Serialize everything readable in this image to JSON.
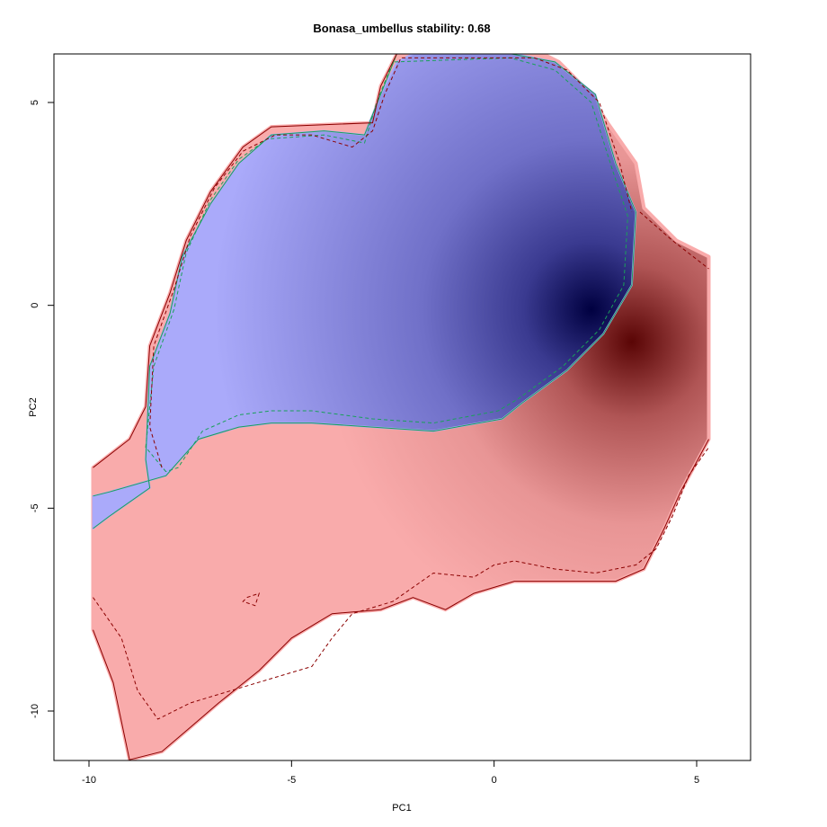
{
  "chart_data": {
    "type": "heatmap",
    "title": "Bonasa_umbellus stability: 0.68",
    "xlabel": "PC1",
    "ylabel": "PC2",
    "xlim": [
      -10,
      5
    ],
    "ylim": [
      -10,
      5
    ],
    "x_ticks": [
      -10,
      -5,
      0,
      5
    ],
    "y_ticks": [
      -10,
      -5,
      0,
      5
    ],
    "x_tick_labels": [
      "-10",
      "-5",
      "0",
      "5"
    ],
    "y_tick_labels": [
      "-10",
      "-5",
      "0",
      "5"
    ],
    "stability": 0.68,
    "colors": {
      "blue_region": "#aaaafa",
      "red_region": "#f9abab",
      "blue_core": "#000040",
      "red_core": "#5a0505",
      "blue_contour": "#1aa05a",
      "red_contour": "#8b0000",
      "background": "#ffffff"
    },
    "regions": [
      {
        "name": "blue",
        "density_peak": [
          2.4,
          -0.1
        ],
        "outline": [
          [
            -9.9,
            -5.5
          ],
          [
            -9.5,
            -5.2
          ],
          [
            -8.5,
            -4.5
          ],
          [
            -8.6,
            -3.8
          ],
          [
            -8.5,
            -1.5
          ],
          [
            -8.0,
            -0.2
          ],
          [
            -7.7,
            1.2
          ],
          [
            -7.0,
            2.5
          ],
          [
            -6.3,
            3.5
          ],
          [
            -5.5,
            4.2
          ],
          [
            -4.2,
            4.3
          ],
          [
            -3.2,
            4.2
          ],
          [
            -2.8,
            5.2
          ],
          [
            -2.4,
            6.0
          ],
          [
            -2.0,
            6.2
          ],
          [
            0.5,
            6.2
          ],
          [
            1.5,
            6.0
          ],
          [
            2.5,
            5.2
          ],
          [
            3.0,
            3.5
          ],
          [
            3.5,
            2.3
          ],
          [
            3.4,
            0.5
          ],
          [
            2.7,
            -0.7
          ],
          [
            1.8,
            -1.6
          ],
          [
            0.7,
            -2.4
          ],
          [
            0.2,
            -2.8
          ],
          [
            -1.5,
            -3.1
          ],
          [
            -3.0,
            -3.0
          ],
          [
            -4.5,
            -2.9
          ],
          [
            -5.5,
            -2.9
          ],
          [
            -6.3,
            -3.0
          ],
          [
            -7.3,
            -3.3
          ],
          [
            -8.1,
            -4.2
          ],
          [
            -9.5,
            -4.6
          ],
          [
            -9.9,
            -4.7
          ]
        ]
      },
      {
        "name": "red",
        "density_peak": [
          3.4,
          -0.9
        ],
        "outline": [
          [
            -9.9,
            -4.0
          ],
          [
            -9.0,
            -3.3
          ],
          [
            -8.6,
            -2.5
          ],
          [
            -8.5,
            -1.0
          ],
          [
            -8.0,
            0.3
          ],
          [
            -7.6,
            1.6
          ],
          [
            -7.0,
            2.8
          ],
          [
            -6.2,
            3.9
          ],
          [
            -5.5,
            4.4
          ],
          [
            -3.0,
            4.5
          ],
          [
            -2.8,
            5.4
          ],
          [
            -2.4,
            6.2
          ],
          [
            1.2,
            6.2
          ],
          [
            1.6,
            6.0
          ],
          [
            2.3,
            5.3
          ],
          [
            2.8,
            4.5
          ],
          [
            3.5,
            3.5
          ],
          [
            3.7,
            2.4
          ],
          [
            4.5,
            1.6
          ],
          [
            5.3,
            1.2
          ],
          [
            5.3,
            -3.3
          ],
          [
            4.6,
            -4.6
          ],
          [
            4.2,
            -5.5
          ],
          [
            3.7,
            -6.5
          ],
          [
            3.0,
            -6.8
          ],
          [
            0.5,
            -6.8
          ],
          [
            -0.5,
            -7.1
          ],
          [
            -1.2,
            -7.5
          ],
          [
            -2.0,
            -7.2
          ],
          [
            -2.8,
            -7.5
          ],
          [
            -4.0,
            -7.6
          ],
          [
            -5.0,
            -8.2
          ],
          [
            -5.8,
            -9.0
          ],
          [
            -6.8,
            -9.8
          ],
          [
            -7.5,
            -10.4
          ],
          [
            -8.2,
            -11.0
          ],
          [
            -9.0,
            -11.2
          ],
          [
            -9.4,
            -9.3
          ],
          [
            -9.9,
            -8.0
          ]
        ]
      }
    ],
    "contours": [
      {
        "name": "blue-solid",
        "color": "#1aa05a",
        "dashed": false,
        "points": [
          [
            -9.9,
            -5.5
          ],
          [
            -9.5,
            -5.2
          ],
          [
            -8.5,
            -4.5
          ],
          [
            -8.6,
            -3.8
          ],
          [
            -8.5,
            -1.5
          ],
          [
            -8.0,
            -0.2
          ],
          [
            -7.7,
            1.2
          ],
          [
            -7.0,
            2.5
          ],
          [
            -6.3,
            3.5
          ],
          [
            -5.5,
            4.2
          ],
          [
            -4.2,
            4.3
          ],
          [
            -3.2,
            4.2
          ],
          [
            -2.8,
            5.2
          ],
          [
            -2.4,
            6.2
          ],
          [
            0.4,
            6.2
          ],
          [
            1.5,
            6.0
          ],
          [
            2.5,
            5.2
          ],
          [
            3.0,
            3.5
          ],
          [
            3.5,
            2.3
          ],
          [
            3.4,
            0.5
          ],
          [
            2.7,
            -0.7
          ],
          [
            1.8,
            -1.6
          ],
          [
            0.7,
            -2.4
          ],
          [
            0.2,
            -2.8
          ],
          [
            -1.5,
            -3.1
          ],
          [
            -3.0,
            -3.0
          ],
          [
            -4.5,
            -2.9
          ],
          [
            -5.5,
            -2.9
          ],
          [
            -6.3,
            -3.0
          ],
          [
            -7.3,
            -3.3
          ],
          [
            -8.1,
            -4.2
          ],
          [
            -9.5,
            -4.6
          ],
          [
            -9.9,
            -4.7
          ]
        ]
      },
      {
        "name": "blue-dashed",
        "color": "#1aa05a",
        "dashed": true,
        "points": [
          [
            -8.1,
            -4.1
          ],
          [
            -8.6,
            -3.5
          ],
          [
            -8.4,
            -1.5
          ],
          [
            -7.9,
            -0.1
          ],
          [
            -7.6,
            1.3
          ],
          [
            -7.0,
            2.6
          ],
          [
            -6.3,
            3.6
          ],
          [
            -5.6,
            4.1
          ],
          [
            -4.2,
            4.2
          ],
          [
            -3.2,
            4.0
          ],
          [
            -2.9,
            5.0
          ],
          [
            -2.5,
            6.0
          ],
          [
            0.4,
            6.1
          ],
          [
            1.5,
            5.8
          ],
          [
            2.4,
            5.0
          ],
          [
            2.9,
            3.4
          ],
          [
            3.3,
            2.2
          ],
          [
            3.2,
            0.5
          ],
          [
            2.6,
            -0.6
          ],
          [
            1.7,
            -1.5
          ],
          [
            0.6,
            -2.3
          ],
          [
            0.1,
            -2.6
          ],
          [
            -1.5,
            -2.9
          ],
          [
            -3.0,
            -2.8
          ],
          [
            -4.5,
            -2.6
          ],
          [
            -5.5,
            -2.6
          ],
          [
            -6.3,
            -2.7
          ],
          [
            -7.2,
            -3.1
          ],
          [
            -7.8,
            -4.0
          ],
          [
            -8.1,
            -4.1
          ]
        ]
      },
      {
        "name": "red-dashed-upper",
        "color": "#8b0000",
        "dashed": true,
        "points": [
          [
            -8.2,
            -4.0
          ],
          [
            -8.5,
            -3.0
          ],
          [
            -8.4,
            -1.0
          ],
          [
            -7.9,
            0.4
          ],
          [
            -7.5,
            1.7
          ],
          [
            -6.9,
            2.9
          ],
          [
            -6.2,
            3.8
          ],
          [
            -5.4,
            4.2
          ],
          [
            -4.5,
            4.2
          ],
          [
            -3.5,
            3.9
          ],
          [
            -3.0,
            4.3
          ],
          [
            -2.7,
            5.2
          ],
          [
            -2.3,
            6.1
          ],
          [
            1.0,
            6.1
          ],
          [
            1.8,
            5.8
          ],
          [
            2.6,
            5.0
          ],
          [
            3.1,
            3.5
          ],
          [
            3.4,
            2.3
          ]
        ]
      },
      {
        "name": "red-dashed-right",
        "color": "#8b0000",
        "dashed": true,
        "points": [
          [
            3.6,
            2.3
          ],
          [
            4.4,
            1.6
          ],
          [
            5.3,
            0.9
          ]
        ]
      },
      {
        "name": "red-dashed-lower",
        "color": "#8b0000",
        "dashed": true,
        "points": [
          [
            -9.9,
            -7.2
          ],
          [
            -9.2,
            -8.2
          ],
          [
            -8.8,
            -9.5
          ],
          [
            -8.3,
            -10.2
          ],
          [
            -7.5,
            -9.8
          ],
          [
            -6.5,
            -9.5
          ],
          [
            -5.5,
            -9.2
          ],
          [
            -4.5,
            -8.9
          ],
          [
            -4.0,
            -8.2
          ],
          [
            -3.5,
            -7.6
          ],
          [
            -2.5,
            -7.3
          ],
          [
            -1.5,
            -6.6
          ],
          [
            -0.5,
            -6.7
          ],
          [
            0.0,
            -6.4
          ],
          [
            0.5,
            -6.3
          ],
          [
            1.5,
            -6.5
          ],
          [
            2.5,
            -6.6
          ],
          [
            3.5,
            -6.4
          ],
          [
            4.0,
            -6.0
          ],
          [
            4.4,
            -5.2
          ],
          [
            4.8,
            -4.2
          ],
          [
            5.3,
            -3.5
          ]
        ]
      },
      {
        "name": "red-dashed-islet",
        "color": "#8b0000",
        "dashed": true,
        "points": [
          [
            -6.1,
            -7.2
          ],
          [
            -5.8,
            -7.1
          ],
          [
            -5.9,
            -7.4
          ],
          [
            -6.2,
            -7.3
          ],
          [
            -6.1,
            -7.2
          ]
        ]
      },
      {
        "name": "red-solid-outer",
        "color": "#8b0000",
        "dashed": false,
        "points": [
          [
            -9.9,
            -4.0
          ],
          [
            -9.0,
            -3.3
          ],
          [
            -8.6,
            -2.5
          ],
          [
            -8.5,
            -1.0
          ],
          [
            -8.0,
            0.3
          ],
          [
            -7.6,
            1.6
          ],
          [
            -7.0,
            2.8
          ],
          [
            -6.2,
            3.9
          ],
          [
            -5.5,
            4.4
          ],
          [
            -3.0,
            4.5
          ],
          [
            -2.8,
            5.4
          ],
          [
            -2.4,
            6.2
          ]
        ]
      },
      {
        "name": "red-solid-lower",
        "color": "#8b0000",
        "dashed": false,
        "points": [
          [
            -9.9,
            -8.0
          ],
          [
            -9.4,
            -9.3
          ],
          [
            -9.0,
            -11.2
          ],
          [
            -8.2,
            -11.0
          ],
          [
            -7.5,
            -10.4
          ],
          [
            -6.8,
            -9.8
          ],
          [
            -5.8,
            -9.0
          ],
          [
            -5.0,
            -8.2
          ],
          [
            -4.0,
            -7.6
          ],
          [
            -2.8,
            -7.5
          ],
          [
            -2.0,
            -7.2
          ],
          [
            -1.2,
            -7.5
          ],
          [
            -0.5,
            -7.1
          ],
          [
            0.5,
            -6.8
          ],
          [
            3.0,
            -6.8
          ],
          [
            3.7,
            -6.5
          ],
          [
            4.2,
            -5.5
          ],
          [
            4.6,
            -4.6
          ],
          [
            5.3,
            -3.3
          ]
        ]
      }
    ]
  }
}
